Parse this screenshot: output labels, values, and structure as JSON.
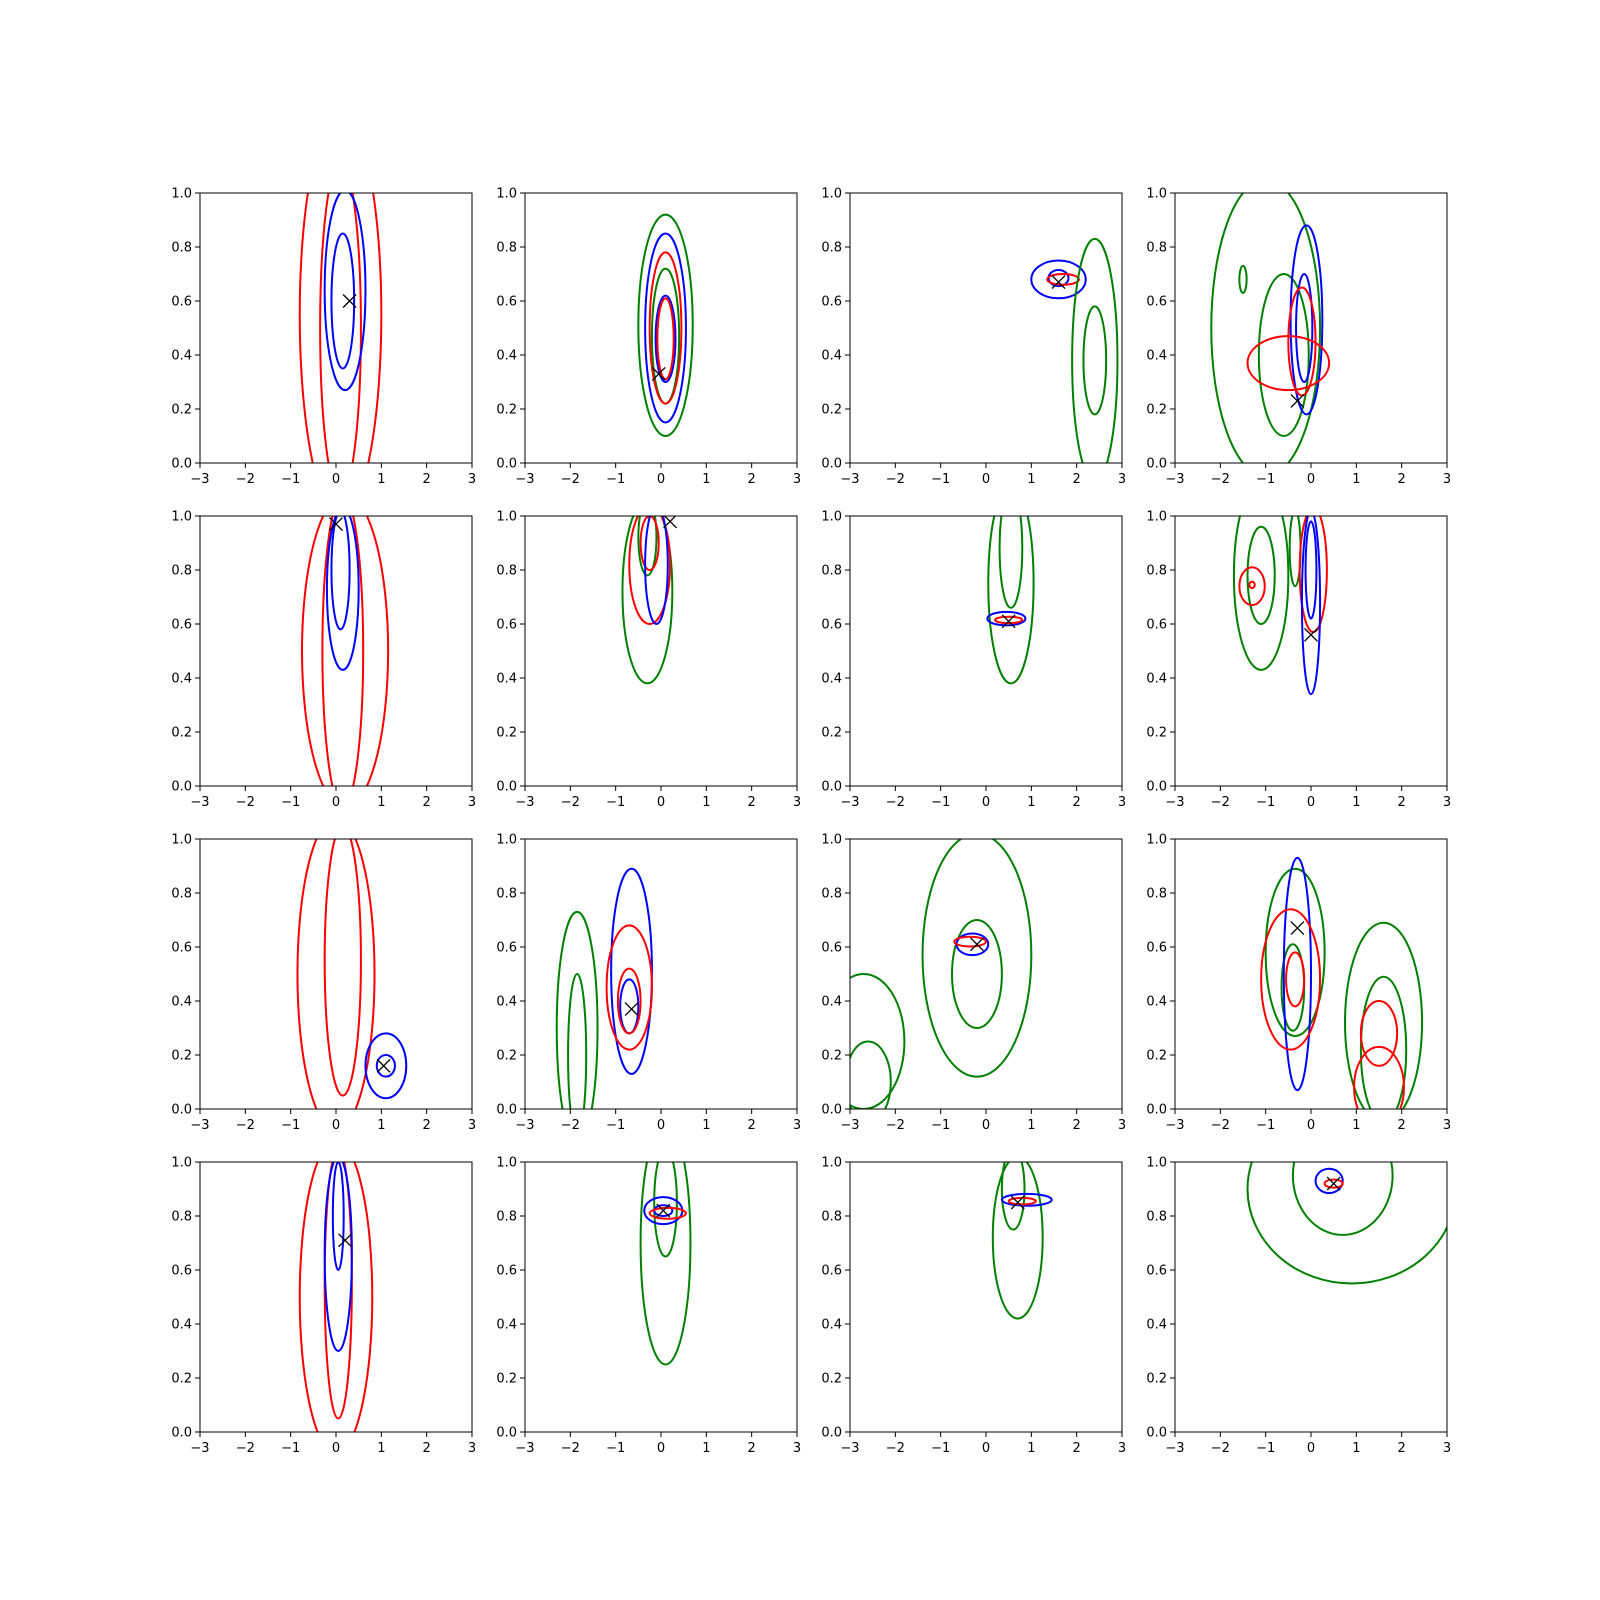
{
  "chart_data": {
    "type": "contour",
    "rows": 4,
    "cols": 4,
    "xlim": [
      -3,
      3
    ],
    "ylim": [
      0,
      1
    ],
    "xticks": [
      "−3",
      "−2",
      "−1",
      "0",
      "1",
      "2",
      "3"
    ],
    "yticks": [
      "0.0",
      "0.2",
      "0.4",
      "0.6",
      "0.8",
      "1.0"
    ],
    "colors": {
      "red": "#ff0000",
      "blue": "#0000ff",
      "green": "#008000",
      "marker": "#000000"
    },
    "panels": [
      {
        "marker": [
          0.3,
          0.6
        ],
        "contours": [
          {
            "color": "red",
            "cx": 0.1,
            "cy": 0.55,
            "rx": 0.9,
            "ry": 0.75
          },
          {
            "color": "red",
            "cx": 0.1,
            "cy": 0.5,
            "rx": 0.45,
            "ry": 0.62
          },
          {
            "color": "blue",
            "cx": 0.2,
            "cy": 0.64,
            "rx": 0.45,
            "ry": 0.37
          },
          {
            "color": "blue",
            "cx": 0.15,
            "cy": 0.6,
            "rx": 0.25,
            "ry": 0.25
          }
        ]
      },
      {
        "marker": [
          -0.05,
          0.33
        ],
        "contours": [
          {
            "color": "green",
            "cx": 0.1,
            "cy": 0.51,
            "rx": 0.6,
            "ry": 0.41
          },
          {
            "color": "green",
            "cx": 0.1,
            "cy": 0.47,
            "rx": 0.3,
            "ry": 0.25
          },
          {
            "color": "blue",
            "cx": 0.1,
            "cy": 0.5,
            "rx": 0.45,
            "ry": 0.35
          },
          {
            "color": "blue",
            "cx": 0.1,
            "cy": 0.46,
            "rx": 0.22,
            "ry": 0.16
          },
          {
            "color": "red",
            "cx": 0.1,
            "cy": 0.5,
            "rx": 0.35,
            "ry": 0.28
          },
          {
            "color": "red",
            "cx": 0.1,
            "cy": 0.46,
            "rx": 0.18,
            "ry": 0.15
          }
        ]
      },
      {
        "marker": [
          1.6,
          0.67
        ],
        "contours": [
          {
            "color": "blue",
            "cx": 1.6,
            "cy": 0.68,
            "rx": 0.6,
            "ry": 0.07
          },
          {
            "color": "blue",
            "cx": 1.6,
            "cy": 0.685,
            "rx": 0.22,
            "ry": 0.03
          },
          {
            "color": "red",
            "cx": 1.7,
            "cy": 0.68,
            "rx": 0.35,
            "ry": 0.02
          },
          {
            "color": "green",
            "cx": 2.4,
            "cy": 0.38,
            "rx": 0.5,
            "ry": 0.45
          },
          {
            "color": "green",
            "cx": 2.4,
            "cy": 0.38,
            "rx": 0.25,
            "ry": 0.2
          }
        ]
      },
      {
        "marker": [
          -0.3,
          0.23
        ],
        "contours": [
          {
            "color": "green",
            "cx": -1.0,
            "cy": 0.5,
            "rx": 1.2,
            "ry": 0.55
          },
          {
            "color": "green",
            "cx": -0.6,
            "cy": 0.4,
            "rx": 0.55,
            "ry": 0.3
          },
          {
            "color": "green",
            "cx": -1.5,
            "cy": 0.68,
            "rx": 0.08,
            "ry": 0.05
          },
          {
            "color": "blue",
            "cx": -0.1,
            "cy": 0.53,
            "rx": 0.35,
            "ry": 0.35
          },
          {
            "color": "blue",
            "cx": -0.15,
            "cy": 0.5,
            "rx": 0.18,
            "ry": 0.2
          },
          {
            "color": "red",
            "cx": -0.5,
            "cy": 0.37,
            "rx": 0.9,
            "ry": 0.1
          },
          {
            "color": "red",
            "cx": -0.2,
            "cy": 0.45,
            "rx": 0.3,
            "ry": 0.2
          }
        ]
      },
      {
        "marker": [
          0.0,
          0.97
        ],
        "contours": [
          {
            "color": "red",
            "cx": 0.2,
            "cy": 0.5,
            "rx": 0.95,
            "ry": 0.58
          },
          {
            "color": "red",
            "cx": 0.15,
            "cy": 0.5,
            "rx": 0.45,
            "ry": 0.58
          },
          {
            "color": "blue",
            "cx": 0.15,
            "cy": 0.73,
            "rx": 0.35,
            "ry": 0.3
          },
          {
            "color": "blue",
            "cx": 0.1,
            "cy": 0.8,
            "rx": 0.2,
            "ry": 0.22
          }
        ]
      },
      {
        "marker": [
          0.2,
          0.98
        ],
        "contours": [
          {
            "color": "green",
            "cx": -0.3,
            "cy": 0.72,
            "rx": 0.55,
            "ry": 0.34
          },
          {
            "color": "green",
            "cx": -0.3,
            "cy": 0.92,
            "rx": 0.2,
            "ry": 0.14
          },
          {
            "color": "red",
            "cx": -0.25,
            "cy": 0.82,
            "rx": 0.45,
            "ry": 0.22
          },
          {
            "color": "red",
            "cx": -0.25,
            "cy": 0.9,
            "rx": 0.2,
            "ry": 0.1
          },
          {
            "color": "blue",
            "cx": -0.1,
            "cy": 0.82,
            "rx": 0.25,
            "ry": 0.22
          }
        ]
      },
      {
        "marker": [
          0.5,
          0.61
        ],
        "contours": [
          {
            "color": "green",
            "cx": 0.55,
            "cy": 0.75,
            "rx": 0.5,
            "ry": 0.37
          },
          {
            "color": "green",
            "cx": 0.55,
            "cy": 0.88,
            "rx": 0.25,
            "ry": 0.22
          },
          {
            "color": "blue",
            "cx": 0.45,
            "cy": 0.62,
            "rx": 0.42,
            "ry": 0.025
          },
          {
            "color": "red",
            "cx": 0.5,
            "cy": 0.615,
            "rx": 0.3,
            "ry": 0.012
          }
        ]
      },
      {
        "marker": [
          0.0,
          0.56
        ],
        "contours": [
          {
            "color": "green",
            "cx": -1.1,
            "cy": 0.78,
            "rx": 0.6,
            "ry": 0.35
          },
          {
            "color": "green",
            "cx": -1.1,
            "cy": 0.78,
            "rx": 0.3,
            "ry": 0.18
          },
          {
            "color": "green",
            "cx": -0.35,
            "cy": 0.88,
            "rx": 0.12,
            "ry": 0.14
          },
          {
            "color": "red",
            "cx": -1.3,
            "cy": 0.74,
            "rx": 0.28,
            "ry": 0.07
          },
          {
            "color": "red",
            "cx": -1.3,
            "cy": 0.745,
            "rx": 0.06,
            "ry": 0.012
          },
          {
            "color": "red",
            "cx": 0.05,
            "cy": 0.8,
            "rx": 0.3,
            "ry": 0.23
          },
          {
            "color": "blue",
            "cx": 0.0,
            "cy": 0.68,
            "rx": 0.2,
            "ry": 0.34
          },
          {
            "color": "blue",
            "cx": 0.0,
            "cy": 0.8,
            "rx": 0.12,
            "ry": 0.18
          }
        ]
      },
      {
        "marker": [
          1.05,
          0.16
        ],
        "contours": [
          {
            "color": "red",
            "cx": 0.0,
            "cy": 0.5,
            "rx": 0.85,
            "ry": 0.58
          },
          {
            "color": "red",
            "cx": 0.15,
            "cy": 0.55,
            "rx": 0.4,
            "ry": 0.5
          },
          {
            "color": "blue",
            "cx": 1.1,
            "cy": 0.16,
            "rx": 0.45,
            "ry": 0.12
          },
          {
            "color": "blue",
            "cx": 1.1,
            "cy": 0.16,
            "rx": 0.2,
            "ry": 0.04
          }
        ]
      },
      {
        "marker": [
          -0.65,
          0.37
        ],
        "contours": [
          {
            "color": "green",
            "cx": -1.85,
            "cy": 0.3,
            "rx": 0.45,
            "ry": 0.43
          },
          {
            "color": "green",
            "cx": -1.85,
            "cy": 0.2,
            "rx": 0.2,
            "ry": 0.3
          },
          {
            "color": "blue",
            "cx": -0.65,
            "cy": 0.51,
            "rx": 0.45,
            "ry": 0.38
          },
          {
            "color": "blue",
            "cx": -0.7,
            "cy": 0.38,
            "rx": 0.2,
            "ry": 0.1
          },
          {
            "color": "red",
            "cx": -0.7,
            "cy": 0.45,
            "rx": 0.5,
            "ry": 0.23
          },
          {
            "color": "red",
            "cx": -0.7,
            "cy": 0.4,
            "rx": 0.25,
            "ry": 0.12
          }
        ]
      },
      {
        "marker": [
          -0.2,
          0.61
        ],
        "contours": [
          {
            "color": "green",
            "cx": -0.2,
            "cy": 0.57,
            "rx": 1.2,
            "ry": 0.45
          },
          {
            "color": "green",
            "cx": -0.2,
            "cy": 0.5,
            "rx": 0.55,
            "ry": 0.2
          },
          {
            "color": "green",
            "cx": -2.7,
            "cy": 0.25,
            "rx": 0.9,
            "ry": 0.25
          },
          {
            "color": "green",
            "cx": -2.6,
            "cy": 0.1,
            "rx": 0.5,
            "ry": 0.15
          },
          {
            "color": "blue",
            "cx": -0.3,
            "cy": 0.61,
            "rx": 0.35,
            "ry": 0.04
          },
          {
            "color": "red",
            "cx": -0.35,
            "cy": 0.62,
            "rx": 0.35,
            "ry": 0.018
          }
        ]
      },
      {
        "marker": [
          -0.3,
          0.67
        ],
        "contours": [
          {
            "color": "green",
            "cx": -0.35,
            "cy": 0.58,
            "rx": 0.65,
            "ry": 0.31
          },
          {
            "color": "green",
            "cx": -0.4,
            "cy": 0.45,
            "rx": 0.25,
            "ry": 0.16
          },
          {
            "color": "green",
            "cx": 1.6,
            "cy": 0.32,
            "rx": 0.85,
            "ry": 0.37
          },
          {
            "color": "green",
            "cx": 1.6,
            "cy": 0.22,
            "rx": 0.5,
            "ry": 0.27
          },
          {
            "color": "blue",
            "cx": -0.3,
            "cy": 0.5,
            "rx": 0.3,
            "ry": 0.43
          },
          {
            "color": "red",
            "cx": -0.45,
            "cy": 0.48,
            "rx": 0.65,
            "ry": 0.26
          },
          {
            "color": "red",
            "cx": -0.35,
            "cy": 0.48,
            "rx": 0.2,
            "ry": 0.1
          },
          {
            "color": "red",
            "cx": 1.5,
            "cy": 0.28,
            "rx": 0.4,
            "ry": 0.12
          },
          {
            "color": "red",
            "cx": 1.5,
            "cy": 0.08,
            "rx": 0.55,
            "ry": 0.15
          }
        ]
      },
      {
        "marker": [
          0.2,
          0.71
        ],
        "contours": [
          {
            "color": "red",
            "cx": 0.0,
            "cy": 0.5,
            "rx": 0.8,
            "ry": 0.58
          },
          {
            "color": "red",
            "cx": 0.05,
            "cy": 0.55,
            "rx": 0.3,
            "ry": 0.5
          },
          {
            "color": "blue",
            "cx": 0.05,
            "cy": 0.66,
            "rx": 0.3,
            "ry": 0.36
          },
          {
            "color": "blue",
            "cx": 0.05,
            "cy": 0.8,
            "rx": 0.12,
            "ry": 0.2
          }
        ]
      },
      {
        "marker": [
          0.05,
          0.82
        ],
        "contours": [
          {
            "color": "green",
            "cx": 0.1,
            "cy": 0.7,
            "rx": 0.55,
            "ry": 0.45
          },
          {
            "color": "green",
            "cx": 0.1,
            "cy": 0.85,
            "rx": 0.25,
            "ry": 0.2
          },
          {
            "color": "blue",
            "cx": 0.05,
            "cy": 0.82,
            "rx": 0.42,
            "ry": 0.05
          },
          {
            "color": "blue",
            "cx": 0.05,
            "cy": 0.82,
            "rx": 0.2,
            "ry": 0.02
          },
          {
            "color": "red",
            "cx": 0.15,
            "cy": 0.81,
            "rx": 0.4,
            "ry": 0.02
          }
        ]
      },
      {
        "marker": [
          0.7,
          0.85
        ],
        "contours": [
          {
            "color": "green",
            "cx": 0.7,
            "cy": 0.72,
            "rx": 0.55,
            "ry": 0.3
          },
          {
            "color": "green",
            "cx": 0.6,
            "cy": 0.9,
            "rx": 0.25,
            "ry": 0.15
          },
          {
            "color": "blue",
            "cx": 0.9,
            "cy": 0.86,
            "rx": 0.55,
            "ry": 0.022
          },
          {
            "color": "red",
            "cx": 0.8,
            "cy": 0.855,
            "rx": 0.3,
            "ry": 0.012
          }
        ]
      },
      {
        "marker": [
          0.5,
          0.92
        ],
        "contours": [
          {
            "color": "green",
            "cx": 0.9,
            "cy": 0.9,
            "rx": 2.3,
            "ry": 0.35
          },
          {
            "color": "green",
            "cx": 0.7,
            "cy": 0.95,
            "rx": 1.1,
            "ry": 0.22
          },
          {
            "color": "blue",
            "cx": 0.4,
            "cy": 0.93,
            "rx": 0.3,
            "ry": 0.045
          },
          {
            "color": "red",
            "cx": 0.5,
            "cy": 0.92,
            "rx": 0.2,
            "ry": 0.015
          }
        ]
      }
    ]
  }
}
